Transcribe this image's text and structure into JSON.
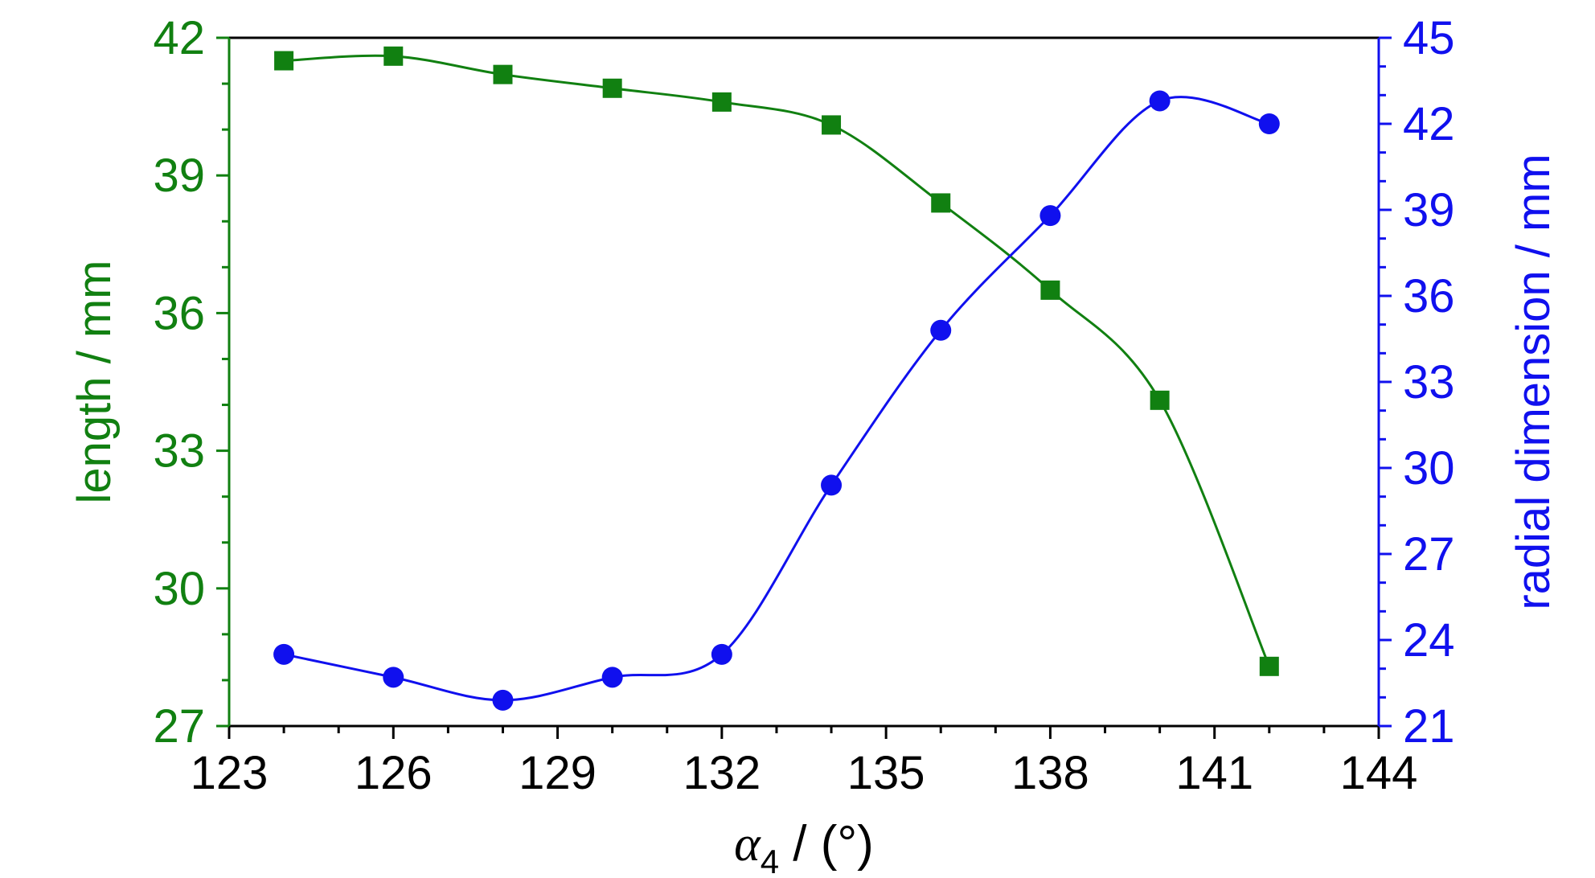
{
  "chart_data": {
    "type": "line",
    "x": [
      124,
      126,
      128,
      130,
      132,
      134,
      136,
      138,
      140,
      142
    ],
    "xlabel_symbol": "α",
    "xlabel_subscript": "4",
    "xlabel_unit": " / (°)",
    "xlim": [
      123,
      144
    ],
    "xticks": [
      "123",
      "126",
      "129",
      "132",
      "135",
      "138",
      "141",
      "144"
    ],
    "grid": false,
    "legend": false,
    "series": [
      {
        "ylabel": "length / mm",
        "axis": "left",
        "marker": "square",
        "color": "#118011",
        "ylim": [
          27,
          42
        ],
        "yticks": [
          "27",
          "30",
          "33",
          "36",
          "39",
          "42"
        ],
        "values": [
          41.5,
          41.6,
          41.2,
          40.9,
          40.6,
          40.1,
          38.4,
          36.5,
          34.1,
          28.3
        ]
      },
      {
        "ylabel": "radial dimension / mm",
        "axis": "right",
        "marker": "circle",
        "color": "#1010ee",
        "ylim": [
          21,
          45
        ],
        "yticks": [
          "21",
          "24",
          "27",
          "30",
          "33",
          "36",
          "39",
          "42",
          "45"
        ],
        "values": [
          23.5,
          22.7,
          21.9,
          22.7,
          23.5,
          29.4,
          34.8,
          38.8,
          42.8,
          42.0
        ]
      }
    ]
  }
}
